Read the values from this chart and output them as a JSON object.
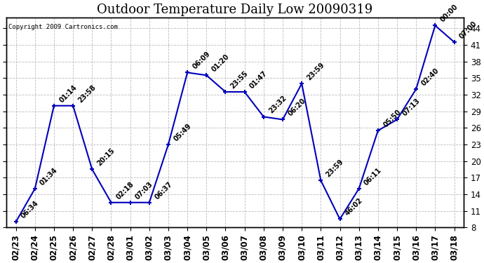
{
  "title": "Outdoor Temperature Daily Low 20090319",
  "copyright": "Copyright 2009 Cartronics.com",
  "x_labels": [
    "02/23",
    "02/24",
    "02/25",
    "02/26",
    "02/27",
    "02/28",
    "03/01",
    "03/02",
    "03/03",
    "03/04",
    "03/05",
    "03/06",
    "03/07",
    "03/08",
    "03/09",
    "03/10",
    "03/11",
    "03/12",
    "03/13",
    "03/14",
    "03/15",
    "03/16",
    "03/17",
    "03/18"
  ],
  "y_values": [
    9.0,
    15.0,
    30.0,
    30.0,
    18.5,
    12.5,
    12.5,
    12.5,
    23.0,
    36.0,
    35.5,
    32.5,
    32.5,
    28.0,
    27.5,
    34.0,
    16.5,
    9.5,
    15.0,
    25.5,
    27.5,
    33.0,
    44.5,
    41.5
  ],
  "point_labels": [
    "06:34",
    "01:34",
    "01:14",
    "23:58",
    "20:15",
    "02:18",
    "07:03",
    "06:37",
    "05:49",
    "06:09",
    "01:20",
    "23:55",
    "01:47",
    "23:32",
    "06:20",
    "23:59",
    "23:59",
    "46:02",
    "06:11",
    "05:50",
    "07:13",
    "02:40",
    "00:00",
    "07:00"
  ],
  "line_color": "#0000bb",
  "marker_color": "#0000bb",
  "bg_color": "#ffffff",
  "grid_color": "#bbbbbb",
  "ylim": [
    8.0,
    46.0
  ],
  "yticks": [
    8.0,
    11.0,
    14.0,
    17.0,
    20.0,
    23.0,
    26.0,
    29.0,
    32.0,
    35.0,
    38.0,
    41.0,
    44.0
  ],
  "title_fontsize": 13,
  "label_fontsize": 7,
  "tick_fontsize": 8.5,
  "fig_width": 6.9,
  "fig_height": 3.75
}
